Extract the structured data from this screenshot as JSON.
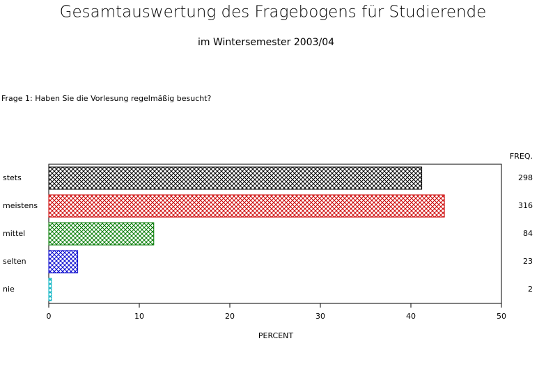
{
  "chart_data": {
    "type": "hbar",
    "title": "Gesamtauswertung des Fragebogens für Studierende",
    "subtitle": "im Wintersemester 2003/04",
    "question": "Frage 1: Haben Sie die Vorlesung regelmäßig besucht?",
    "categories": [
      "stets",
      "meistens",
      "mittel",
      "selten",
      "nie"
    ],
    "values": [
      41.2,
      43.7,
      11.6,
      3.2,
      0.3
    ],
    "colors": [
      "#000000",
      "#cc0000",
      "#007a00",
      "#0000cc",
      "#00b0c0"
    ],
    "freq_label": "FREQ.",
    "freq": [
      298,
      316,
      84,
      23,
      2
    ],
    "xlabel": "PERCENT",
    "xlim": [
      0,
      50
    ],
    "xticks": [
      0,
      10,
      20,
      30,
      40,
      50
    ]
  }
}
